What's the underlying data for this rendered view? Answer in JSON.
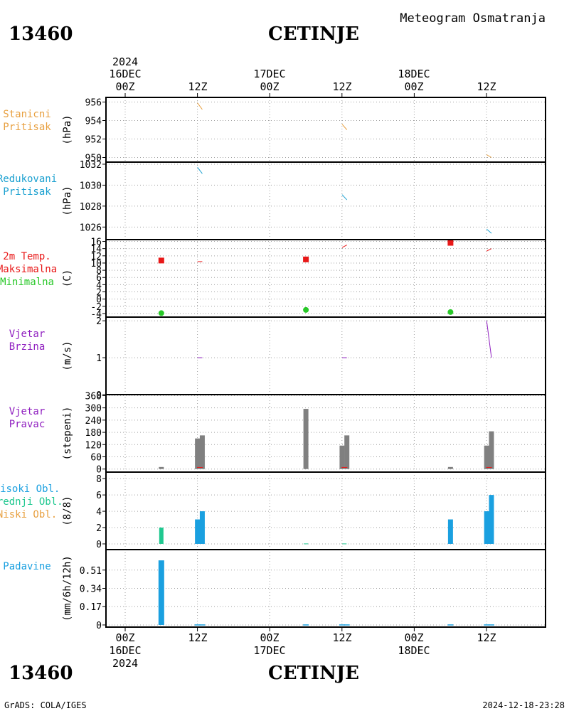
{
  "header": {
    "station_id": "13460",
    "station_name": "CETINJE",
    "subtitle": "Meteogram Osmatranja"
  },
  "footer": {
    "station_id": "13460",
    "station_name": "CETINJE",
    "credit": "GrADS: COLA/IGES",
    "timestamp": "2024-12-18-23:28"
  },
  "time_axis": {
    "hours": [
      "00Z",
      "12Z",
      "00Z",
      "12Z",
      "00Z",
      "12Z"
    ],
    "dates_top": [
      "16DEC",
      "",
      "17DEC",
      "",
      "18DEC",
      ""
    ],
    "year_top": "2024",
    "dates_bottom": [
      "16DEC",
      "",
      "17DEC",
      "",
      "18DEC",
      ""
    ],
    "year_bottom": "2024"
  },
  "colors": {
    "grid": "#a0a0a0",
    "station_pressure": "#e8a040",
    "reduced_pressure": "#1aa0d0",
    "tmax": "#e81818",
    "tmin": "#28c828",
    "wind_speed": "#9020c0",
    "wind_dir_bar": "#808080",
    "wind_dir_red": "#e81818",
    "cloud_high": "#1aa0e0",
    "cloud_mid": "#20c890",
    "cloud_low": "#e8a040",
    "precip": "#1aa0e0"
  },
  "chart_data": [
    {
      "type": "line",
      "labels": [
        "Stanicni",
        "Pritisak"
      ],
      "unit": "(hPa)",
      "ylim": [
        949.5,
        956.5
      ],
      "ticks": [
        950,
        952,
        954,
        956
      ],
      "segments": [
        {
          "x": [
            12,
            12.8
          ],
          "y": [
            955.9,
            955.2
          ]
        },
        {
          "x": [
            36,
            36.8
          ],
          "y": [
            953.6,
            953.0
          ]
        },
        {
          "x": [
            60,
            60.8
          ],
          "y": [
            950.3,
            950.0
          ]
        }
      ]
    },
    {
      "type": "line",
      "labels": [
        "Redukovani",
        "Pritisak"
      ],
      "unit": "(hPa)",
      "ylim": [
        1024.8,
        1032.2
      ],
      "ticks": [
        1026,
        1028,
        1030,
        1032
      ],
      "segments": [
        {
          "x": [
            12,
            12.8
          ],
          "y": [
            1031.7,
            1031.1
          ]
        },
        {
          "x": [
            36,
            36.8
          ],
          "y": [
            1029.1,
            1028.6
          ]
        },
        {
          "x": [
            60,
            60.8
          ],
          "y": [
            1025.8,
            1025.4
          ]
        }
      ]
    },
    {
      "type": "scatter",
      "labels": [
        "2m Temp.",
        "Maksimalna",
        "Minimalna"
      ],
      "unit": "(C)",
      "ylim": [
        -5,
        16.5
      ],
      "ticks": [
        -4,
        -2,
        0,
        2,
        4,
        6,
        8,
        10,
        12,
        14,
        16
      ],
      "tmax_points": [
        {
          "x": 6,
          "y": 10.7
        },
        {
          "x": 30,
          "y": 11.0
        },
        {
          "x": 54,
          "y": 15.6
        }
      ],
      "tmin_points": [
        {
          "x": 6,
          "y": -3.9
        },
        {
          "x": 30,
          "y": -3.0
        },
        {
          "x": 54,
          "y": -3.6
        }
      ],
      "segments": [
        {
          "x": [
            12,
            12.8
          ],
          "y": [
            10.4,
            10.4
          ]
        },
        {
          "x": [
            36,
            36.8
          ],
          "y": [
            14.3,
            15.0
          ]
        },
        {
          "x": [
            60,
            60.8
          ],
          "y": [
            13.3,
            14.0
          ]
        }
      ]
    },
    {
      "type": "line",
      "labels": [
        "Vjetar",
        "Brzina"
      ],
      "unit": "(m/s)",
      "ylim": [
        0,
        2.1
      ],
      "ticks": [
        0,
        1,
        2
      ],
      "segments": [
        {
          "x": [
            12,
            12.8
          ],
          "y": [
            1,
            1
          ]
        },
        {
          "x": [
            36,
            36.8
          ],
          "y": [
            1,
            1
          ]
        },
        {
          "x": [
            60,
            60.8
          ],
          "y": [
            2,
            1
          ]
        }
      ]
    },
    {
      "type": "bar",
      "labels": [
        "Vjetar",
        "Pravac"
      ],
      "unit": "(stepeni)",
      "ylim": [
        -15,
        365
      ],
      "ticks": [
        0,
        60,
        120,
        180,
        240,
        300,
        360
      ],
      "bars": [
        {
          "x": 6,
          "y": 10
        },
        {
          "x": 12,
          "y": 150
        },
        {
          "x": 12.8,
          "y": 165
        },
        {
          "x": 30,
          "y": 295
        },
        {
          "x": 36,
          "y": 115
        },
        {
          "x": 36.8,
          "y": 165
        },
        {
          "x": 54,
          "y": 10
        },
        {
          "x": 60,
          "y": 115
        },
        {
          "x": 60.8,
          "y": 185
        }
      ],
      "marks": [
        {
          "x": 12.4,
          "y": 8
        },
        {
          "x": 36.4,
          "y": 8
        },
        {
          "x": 60.4,
          "y": 8
        }
      ]
    },
    {
      "type": "bar",
      "labels": [
        "Visoki Obl.",
        "Srednji Obl.",
        "Niski Obl."
      ],
      "unit": "(8/8)",
      "ylim": [
        -0.7,
        8.8
      ],
      "ticks": [
        0,
        2,
        4,
        6,
        8
      ],
      "high": [
        {
          "x": 12,
          "y": 3
        },
        {
          "x": 12.8,
          "y": 4
        },
        {
          "x": 54,
          "y": 3
        },
        {
          "x": 60,
          "y": 4
        },
        {
          "x": 60.8,
          "y": 6
        }
      ],
      "mid": [
        {
          "x": 6,
          "y": 2
        },
        {
          "x": 30,
          "y": 0.05
        },
        {
          "x": 36.4,
          "y": 0.05
        }
      ]
    },
    {
      "type": "bar",
      "labels": [
        "Padavine"
      ],
      "unit": "(mm/6h/12h)",
      "ylim": [
        -0.02,
        0.7
      ],
      "ticks": [
        0,
        0.17,
        0.34,
        0.51
      ],
      "tick_labels": [
        "0",
        "0.17",
        "0.34",
        "0.51"
      ],
      "bars": [
        {
          "x": 6,
          "y": 0.6
        },
        {
          "x": 12,
          "y": 0.005
        },
        {
          "x": 12.8,
          "y": 0.005
        },
        {
          "x": 30,
          "y": 0.005
        },
        {
          "x": 36,
          "y": 0.005
        },
        {
          "x": 36.8,
          "y": 0.005
        },
        {
          "x": 54,
          "y": 0.005
        },
        {
          "x": 60,
          "y": 0.005
        },
        {
          "x": 60.8,
          "y": 0.005
        }
      ]
    }
  ]
}
